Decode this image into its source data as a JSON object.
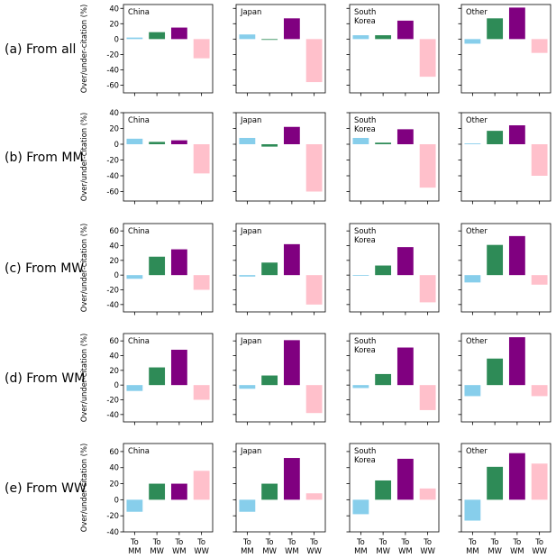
{
  "chart_data": {
    "type": "bar",
    "ylabel": "Over/under-citation (%)",
    "categories": [
      "To\nMM",
      "To\nMW",
      "To\nWM",
      "To\nWW"
    ],
    "category_colors": [
      "#87ceeb",
      "#2e8b57",
      "#800080",
      "#ffc0cb"
    ],
    "panel_titles": [
      "China",
      "Japan",
      "South\nKorea",
      "Other"
    ],
    "rows": [
      {
        "label": "(a) From all",
        "ylim": [
          -70,
          45
        ],
        "yticks": [
          -60,
          -40,
          -20,
          0,
          20,
          40
        ],
        "values": [
          [
            2,
            9,
            15,
            -25
          ],
          [
            6,
            -1,
            27,
            -56
          ],
          [
            5,
            5,
            24,
            -49
          ],
          [
            -6,
            27,
            41,
            -18
          ]
        ]
      },
      {
        "label": "(b) From MM",
        "ylim": [
          -72,
          40
        ],
        "yticks": [
          -60,
          -40,
          -20,
          0,
          20,
          40
        ],
        "values": [
          [
            7,
            3,
            5,
            -37
          ],
          [
            8,
            -3,
            22,
            -60
          ],
          [
            8,
            2,
            19,
            -55
          ],
          [
            1,
            17,
            24,
            -40
          ]
        ]
      },
      {
        "label": "(c) From MW",
        "ylim": [
          -50,
          70
        ],
        "yticks": [
          -40,
          -20,
          0,
          20,
          40,
          60
        ],
        "values": [
          [
            -5,
            25,
            35,
            -20
          ],
          [
            -2,
            17,
            42,
            -40
          ],
          [
            -1,
            13,
            38,
            -37
          ],
          [
            -10,
            41,
            53,
            -13
          ]
        ]
      },
      {
        "label": "(d) From WM",
        "ylim": [
          -50,
          70
        ],
        "yticks": [
          -40,
          -20,
          0,
          20,
          40,
          60
        ],
        "values": [
          [
            -8,
            24,
            48,
            -20
          ],
          [
            -5,
            13,
            61,
            -38
          ],
          [
            -4,
            15,
            51,
            -34
          ],
          [
            -15,
            36,
            65,
            -15
          ]
        ]
      },
      {
        "label": "(e) From WW",
        "ylim": [
          -40,
          70
        ],
        "yticks": [
          -40,
          -20,
          0,
          20,
          40,
          60
        ],
        "values": [
          [
            -15,
            20,
            20,
            36
          ],
          [
            -15,
            20,
            52,
            8
          ],
          [
            -18,
            24,
            51,
            14
          ],
          [
            -26,
            41,
            58,
            45
          ]
        ]
      }
    ]
  }
}
